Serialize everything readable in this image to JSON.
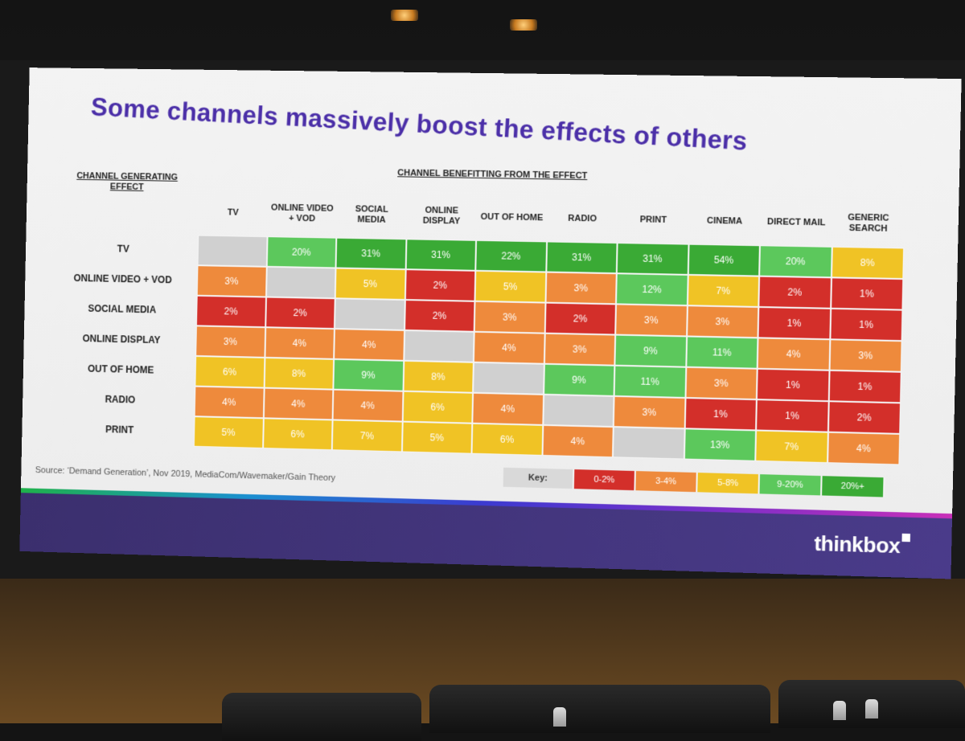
{
  "slide": {
    "title": "Some channels massively boost the effects of others",
    "benefit_header": "CHANNEL BENEFITTING FROM THE EFFECT",
    "generating_header": "CHANNEL GENERATING EFFECT",
    "source": "Source: ‘Demand Generation’, Nov 2019, MediaCom/Wavemaker/Gain Theory",
    "brand": "thinkbox"
  },
  "key": {
    "label": "Key:",
    "items": [
      {
        "range": "0-2%",
        "color": "#d32f2a"
      },
      {
        "range": "3-4%",
        "color": "#ee8a3c"
      },
      {
        "range": "5-8%",
        "color": "#f0c325"
      },
      {
        "range": "9-20%",
        "color": "#5cc85c"
      },
      {
        "range": "20%+",
        "color": "#3aaa35"
      }
    ]
  },
  "chart_data": {
    "type": "heatmap",
    "title": "Some channels massively boost the effects of others",
    "xlabel": "CHANNEL BENEFITTING FROM THE EFFECT",
    "ylabel": "CHANNEL GENERATING EFFECT",
    "columns": [
      "TV",
      "ONLINE VIDEO\n+ VOD",
      "SOCIAL\nMEDIA",
      "ONLINE\nDISPLAY",
      "OUT OF HOME",
      "RADIO",
      "PRINT",
      "CINEMA",
      "DIRECT MAIL",
      "GENERIC\nSEARCH"
    ],
    "rows": [
      "TV",
      "ONLINE VIDEO + VOD",
      "SOCIAL MEDIA",
      "ONLINE DISPLAY",
      "OUT OF HOME",
      "RADIO",
      "PRINT"
    ],
    "values": [
      [
        null,
        20,
        31,
        31,
        22,
        31,
        31,
        54,
        20,
        8
      ],
      [
        3,
        null,
        5,
        2,
        5,
        3,
        12,
        7,
        2,
        1
      ],
      [
        2,
        2,
        null,
        2,
        3,
        2,
        3,
        3,
        1,
        1
      ],
      [
        3,
        4,
        4,
        null,
        4,
        3,
        9,
        11,
        4,
        3
      ],
      [
        6,
        8,
        9,
        8,
        null,
        9,
        11,
        3,
        1,
        1
      ],
      [
        4,
        4,
        4,
        6,
        4,
        null,
        3,
        1,
        1,
        2
      ],
      [
        5,
        6,
        7,
        5,
        6,
        4,
        null,
        13,
        7,
        4
      ]
    ],
    "unit": "%",
    "diagonal_color": "#d0d0d0"
  }
}
